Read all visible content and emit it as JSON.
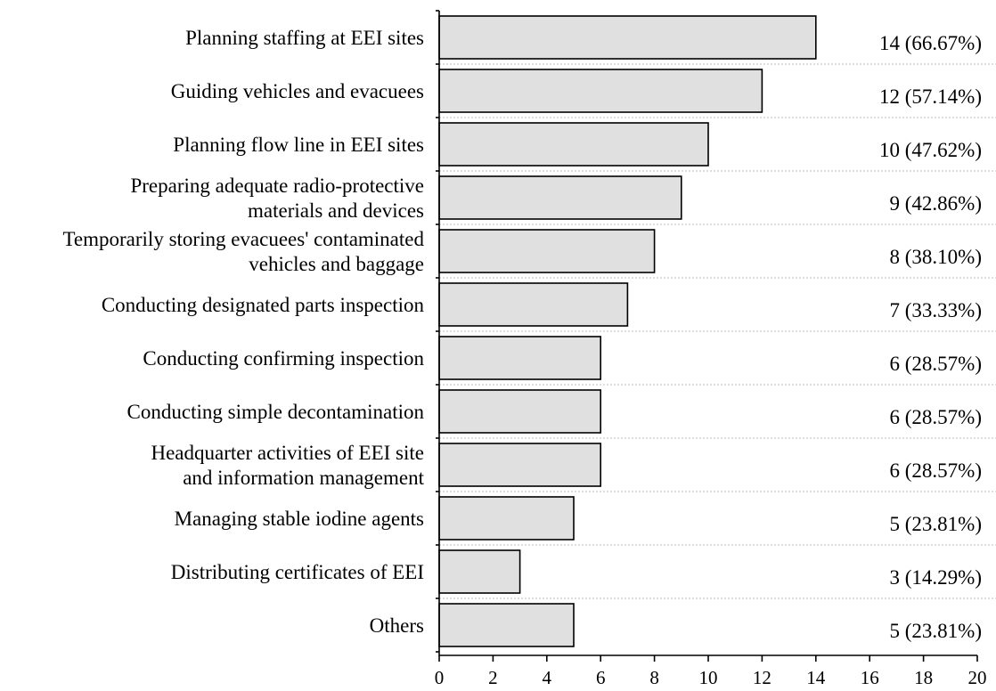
{
  "chart_data": {
    "type": "bar",
    "orientation": "horizontal",
    "categories": [
      "Planning staffing at EEI sites",
      "Guiding vehicles and evacuees",
      "Planning flow line in EEI sites",
      "Preparing adequate radio-protective\nmaterials and devices",
      "Temporarily storing evacuees' contaminated\nvehicles and baggage",
      "Conducting designated parts inspection",
      "Conducting confirming inspection",
      "Conducting simple decontamination",
      "Headquarter activities of EEI site\nand information management",
      "Managing stable iodine agents",
      "Distributing certificates of EEI",
      "Others"
    ],
    "values": [
      14,
      12,
      10,
      9,
      8,
      7,
      6,
      6,
      6,
      5,
      3,
      5
    ],
    "value_labels": [
      "14 (66.67%)",
      "12 (57.14%)",
      "10 (47.62%)",
      "9 (42.86%)",
      "8 (38.10%)",
      "7 (33.33%)",
      "6 (28.57%)",
      "6 (28.57%)",
      "6 (28.57%)",
      "5 (23.81%)",
      "3 (14.29%)",
      "5 (23.81%)"
    ],
    "xlim": [
      0,
      20
    ],
    "xticks": [
      0,
      2,
      4,
      6,
      8,
      10,
      12,
      14,
      16,
      18,
      20
    ],
    "xtick_labels": [
      "0",
      "2",
      "4",
      "6",
      "8",
      "10",
      "12",
      "14",
      "16",
      "18",
      "20"
    ],
    "title": "",
    "xlabel": "",
    "ylabel": "",
    "grid": "dotted row separators",
    "bar_color": "#e0e0e0",
    "bar_edge_color": "#000000"
  }
}
